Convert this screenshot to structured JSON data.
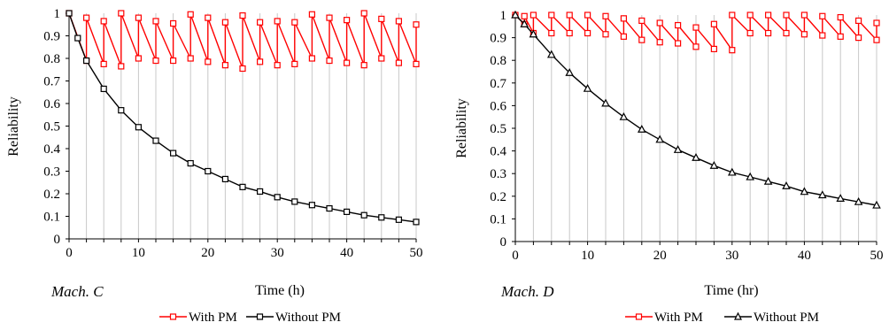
{
  "chart_data": [
    {
      "type": "line",
      "panel_label": "Mach. C",
      "xlabel": "Time  (h)",
      "ylabel": "Reliability",
      "xlim": [
        0,
        50
      ],
      "ylim": [
        0,
        1
      ],
      "x_ticks": [
        "0",
        "10",
        "20",
        "30",
        "40",
        "50"
      ],
      "y_ticks": [
        "0",
        "0.1",
        "0.2",
        "0.3",
        "0.4",
        "0.5",
        "0.6",
        "0.7",
        "0.8",
        "0.9",
        "1"
      ],
      "grid": "vertical",
      "legend_position": "bottom",
      "series": [
        {
          "name": "With PM",
          "color": "#ff0000",
          "marker": "square",
          "x": [
            0,
            2.5,
            2.5,
            5,
            5,
            7.5,
            7.5,
            10,
            10,
            12.5,
            12.5,
            15,
            15,
            17.5,
            17.5,
            20,
            20,
            22.5,
            22.5,
            25,
            25,
            27.5,
            27.5,
            30,
            30,
            32.5,
            32.5,
            35,
            35,
            37.5,
            37.5,
            40,
            40,
            42.5,
            42.5,
            45,
            45,
            47.5,
            47.5,
            50,
            50
          ],
          "y": [
            1.0,
            0.79,
            0.98,
            0.775,
            0.965,
            0.765,
            1.0,
            0.8,
            0.98,
            0.79,
            0.965,
            0.79,
            0.955,
            0.8,
            0.995,
            0.785,
            0.98,
            0.77,
            0.96,
            0.755,
            0.99,
            0.785,
            0.96,
            0.77,
            0.965,
            0.775,
            0.96,
            0.8,
            0.995,
            0.79,
            0.98,
            0.78,
            0.97,
            0.77,
            1.0,
            0.8,
            0.975,
            0.78,
            0.965,
            0.775,
            0.95
          ]
        },
        {
          "name": "Without PM",
          "color": "#000000",
          "marker": "square",
          "x": [
            0,
            1.25,
            2.5,
            5,
            7.5,
            10,
            12.5,
            15,
            17.5,
            20,
            22.5,
            25,
            27.5,
            30,
            32.5,
            35,
            37.5,
            40,
            42.5,
            45,
            47.5,
            50
          ],
          "y": [
            1.0,
            0.89,
            0.79,
            0.665,
            0.57,
            0.495,
            0.435,
            0.38,
            0.335,
            0.3,
            0.265,
            0.23,
            0.21,
            0.185,
            0.165,
            0.15,
            0.135,
            0.12,
            0.105,
            0.095,
            0.085,
            0.075
          ]
        }
      ]
    },
    {
      "type": "line",
      "panel_label": "Mach. D",
      "xlabel": "Time (hr)",
      "ylabel": "Reliability",
      "xlim": [
        0,
        50
      ],
      "ylim": [
        0,
        1
      ],
      "x_ticks": [
        "0",
        "10",
        "20",
        "30",
        "40",
        "50"
      ],
      "y_ticks": [
        "0",
        "0.1",
        "0.2",
        "0.3",
        "0.4",
        "0.5",
        "0.6",
        "0.7",
        "0.8",
        "0.9",
        "1"
      ],
      "grid": "vertical",
      "legend_position": "bottom",
      "series": [
        {
          "name": "With PM",
          "color": "#ff0000",
          "marker": "square",
          "x": [
            0,
            1.25,
            1.25,
            2.5,
            2.5,
            5,
            5,
            7.5,
            7.5,
            10,
            10,
            12.5,
            12.5,
            15,
            15,
            17.5,
            17.5,
            20,
            20,
            22.5,
            22.5,
            25,
            25,
            27.5,
            27.5,
            30,
            30,
            32.5,
            32.5,
            35,
            35,
            37.5,
            37.5,
            40,
            40,
            42.5,
            42.5,
            45,
            45,
            47.5,
            47.5,
            50,
            50
          ],
          "y": [
            1.0,
            0.96,
            0.995,
            0.92,
            1.0,
            0.92,
            1.0,
            0.92,
            1.0,
            0.92,
            1.0,
            0.915,
            0.995,
            0.905,
            0.985,
            0.89,
            0.975,
            0.88,
            0.965,
            0.875,
            0.955,
            0.86,
            0.945,
            0.85,
            0.96,
            0.845,
            1.0,
            0.92,
            1.0,
            0.92,
            1.0,
            0.92,
            1.0,
            0.915,
            1.0,
            0.91,
            0.995,
            0.905,
            0.99,
            0.9,
            0.975,
            0.89,
            0.965
          ]
        },
        {
          "name": "Without PM",
          "color": "#000000",
          "marker": "triangle",
          "x": [
            0,
            1.25,
            2.5,
            5,
            7.5,
            10,
            12.5,
            15,
            17.5,
            20,
            22.5,
            25,
            27.5,
            30,
            32.5,
            35,
            37.5,
            40,
            42.5,
            45,
            47.5,
            50
          ],
          "y": [
            1.0,
            0.96,
            0.915,
            0.825,
            0.745,
            0.675,
            0.61,
            0.55,
            0.495,
            0.45,
            0.405,
            0.37,
            0.335,
            0.305,
            0.285,
            0.265,
            0.245,
            0.22,
            0.205,
            0.19,
            0.175,
            0.16
          ]
        }
      ]
    }
  ]
}
